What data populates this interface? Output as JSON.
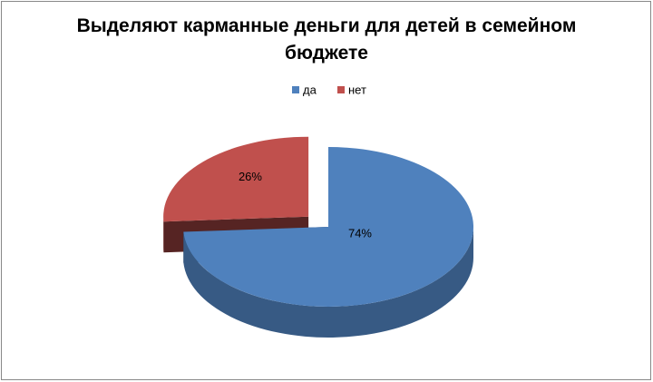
{
  "chart_data": {
    "type": "pie3d",
    "title": "Выделяют карманные деньги для детей в семейном бюджете",
    "categories": [
      "да",
      "нет"
    ],
    "values": [
      74,
      26
    ],
    "value_labels": [
      "74%",
      "26%"
    ],
    "colors": [
      "#4f81bd",
      "#c0504d"
    ],
    "legend": "top"
  }
}
